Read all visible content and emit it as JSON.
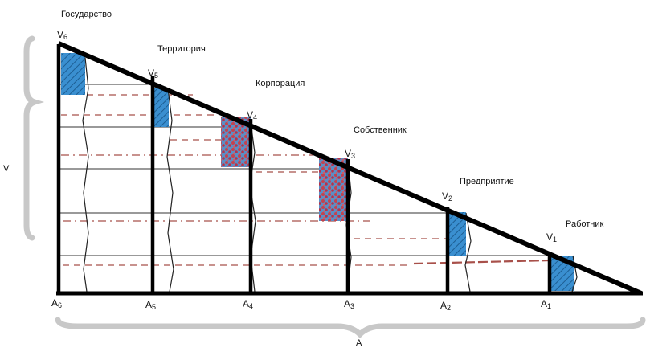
{
  "levels": [
    {
      "name": "Государство"
    },
    {
      "name": "Территория"
    },
    {
      "name": "Корпорация"
    },
    {
      "name": "Собственник"
    },
    {
      "name": "Предприятие"
    },
    {
      "name": "Работник"
    }
  ],
  "vertices": [
    {
      "base": "V",
      "index": "6"
    },
    {
      "base": "V",
      "index": "5"
    },
    {
      "base": "V",
      "index": "4"
    },
    {
      "base": "V",
      "index": "3"
    },
    {
      "base": "V",
      "index": "2"
    },
    {
      "base": "V",
      "index": "1"
    }
  ],
  "bases": [
    {
      "base": "A",
      "index": "6"
    },
    {
      "base": "A",
      "index": "5"
    },
    {
      "base": "A",
      "index": "4"
    },
    {
      "base": "A",
      "index": "3"
    },
    {
      "base": "A",
      "index": "2"
    },
    {
      "base": "A",
      "index": "1"
    }
  ],
  "axes": {
    "vertical_label": "V",
    "horizontal_label": "A"
  },
  "colors": {
    "outline": "#000000",
    "hatch_fill": "#3a8fd0",
    "speckle_fill": "#c4424f",
    "dashed_line": "#a8504a",
    "brace": "#c8c8c8"
  }
}
